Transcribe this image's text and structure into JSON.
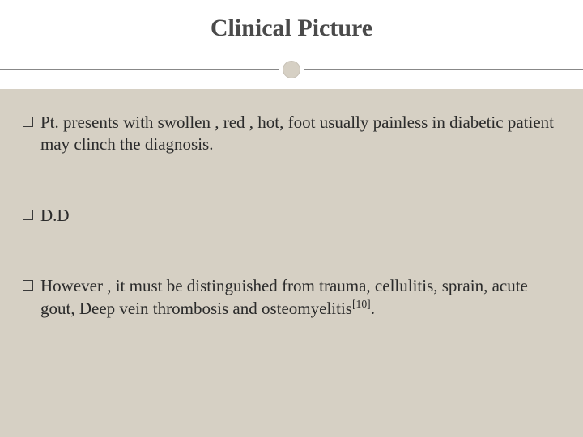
{
  "slide": {
    "title": "Clinical Picture",
    "background_color": "#d6d0c4",
    "title_bg": "#ffffff",
    "title_color": "#4a4a4a",
    "title_fontsize": 30,
    "body_fontsize": 21,
    "body_color": "#2b2b2b",
    "bullets": [
      {
        "text": "Pt. presents with swollen , red , hot, foot  usually painless in diabetic patient may clinch the diagnosis.",
        "ref": null
      },
      {
        "text": "D.D",
        "ref": null
      },
      {
        "text": " However , it must be distinguished from trauma, cellulitis, sprain, acute gout, Deep vein thrombosis and osteomyelitis",
        "ref": "[10]",
        "suffix": "."
      }
    ],
    "circle_border_color": "#ffffff",
    "hr_color": "#888888"
  }
}
